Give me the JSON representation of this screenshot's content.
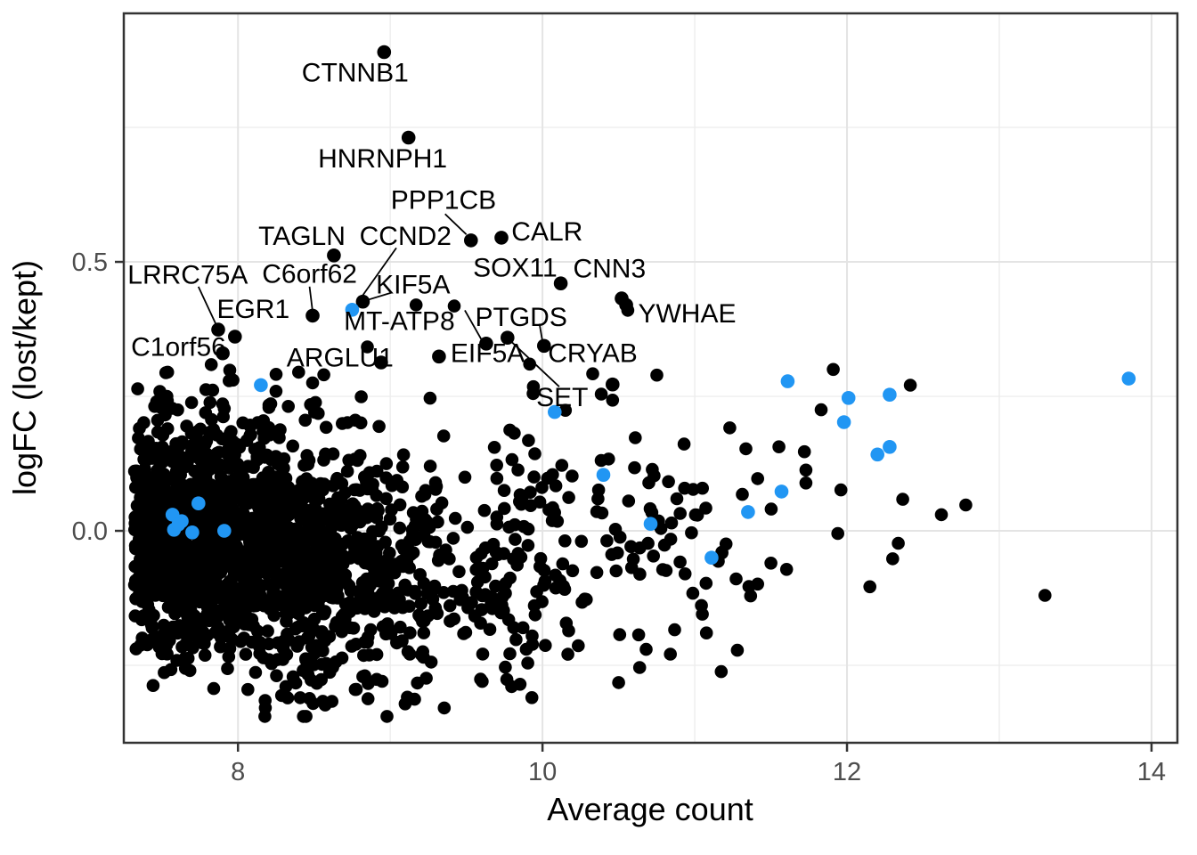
{
  "chart_data": {
    "type": "scatter",
    "title": "",
    "xlabel": "Average count",
    "ylabel": "logFC (lost/kept)",
    "xlim": [
      7.25,
      14.17
    ],
    "ylim": [
      -0.394,
      0.962
    ],
    "x_ticks": [
      {
        "v": 8,
        "label": "8"
      },
      {
        "v": 10,
        "label": "10"
      },
      {
        "v": 12,
        "label": "12"
      },
      {
        "v": 14,
        "label": "14"
      }
    ],
    "y_ticks": [
      {
        "v": 0.0,
        "label": "0.0"
      },
      {
        "v": 0.5,
        "label": "0.5"
      }
    ],
    "x_minor": [
      9,
      11,
      13
    ],
    "y_minor": [
      -0.25,
      0.25,
      0.75
    ],
    "grid": true,
    "legend": "none",
    "colors": {
      "point": "#000000",
      "highlight": "#2196F3",
      "grid_major": "#E4E4E4",
      "grid_minor": "#EDEDED",
      "panel_border": "#333333",
      "axis_text": "#4D4D4D",
      "axis_title": "#000000",
      "label_text": "#000000"
    },
    "labeled_points": [
      {
        "gene": "CTNNB1",
        "x": 8.96,
        "y": 0.89,
        "lx": 8.77,
        "ly": 0.852,
        "line": false,
        "blue": false
      },
      {
        "gene": "HNRNPH1",
        "x": 9.12,
        "y": 0.731,
        "lx": 8.95,
        "ly": 0.692,
        "line": false,
        "blue": false
      },
      {
        "gene": "PPP1CB",
        "x": 9.53,
        "y": 0.54,
        "lx": 9.35,
        "ly": 0.615,
        "line": true,
        "blue": false,
        "seg": [
          9.36,
          0.589,
          9.5,
          0.551
        ]
      },
      {
        "gene": "CALR",
        "x": 9.73,
        "y": 0.545,
        "lx": 10.03,
        "ly": 0.556,
        "line": false,
        "blue": false
      },
      {
        "gene": "TAGLN",
        "x": 8.63,
        "y": 0.512,
        "lx": 8.42,
        "ly": 0.548,
        "line": false,
        "blue": false
      },
      {
        "gene": "CCND2",
        "x": 8.75,
        "y": 0.411,
        "lx": 9.1,
        "ly": 0.548,
        "line": true,
        "blue": true,
        "seg": [
          9.04,
          0.526,
          8.78,
          0.422
        ]
      },
      {
        "gene": "SOX11",
        "x": 10.12,
        "y": 0.46,
        "lx": 9.82,
        "ly": 0.489,
        "line": false,
        "blue": false
      },
      {
        "gene": "CNN3",
        "x": 10.52,
        "y": 0.432,
        "lx": 10.44,
        "ly": 0.488,
        "line": false,
        "blue": false
      },
      {
        "gene": "LRRC75A",
        "x": 7.87,
        "y": 0.374,
        "lx": 7.67,
        "ly": 0.476,
        "line": true,
        "blue": false,
        "seg": [
          7.74,
          0.454,
          7.86,
          0.381
        ]
      },
      {
        "gene": "C6orf62",
        "x": 8.49,
        "y": 0.4,
        "lx": 8.47,
        "ly": 0.478,
        "line": true,
        "blue": false,
        "seg": [
          8.47,
          0.454,
          8.49,
          0.408
        ]
      },
      {
        "gene": "KIF5A",
        "x": 8.82,
        "y": 0.426,
        "lx": 9.15,
        "ly": 0.458,
        "line": true,
        "blue": false,
        "seg": [
          9.01,
          0.443,
          8.86,
          0.43
        ]
      },
      {
        "gene": "EGR1",
        "x": 7.98,
        "y": 0.361,
        "lx": 8.1,
        "ly": 0.412,
        "line": false,
        "blue": false
      },
      {
        "gene": "MT-ATP8",
        "x": 9.63,
        "y": 0.348,
        "lx": 9.06,
        "ly": 0.39,
        "line": true,
        "blue": false,
        "seg": [
          9.49,
          0.41,
          9.6,
          0.355
        ]
      },
      {
        "gene": "PTGDS",
        "x": 10.01,
        "y": 0.344,
        "lx": 9.86,
        "ly": 0.397,
        "line": true,
        "blue": false,
        "seg": [
          9.98,
          0.385,
          10.0,
          0.352
        ]
      },
      {
        "gene": "C1orf56",
        "x": 7.9,
        "y": 0.33,
        "lx": 7.61,
        "ly": 0.342,
        "line": false,
        "blue": false
      },
      {
        "gene": "ARGLU1",
        "x": 8.94,
        "y": 0.313,
        "lx": 8.67,
        "ly": 0.322,
        "line": false,
        "blue": false
      },
      {
        "gene": "EIF5A",
        "x": 9.32,
        "y": 0.324,
        "lx": 9.64,
        "ly": 0.33,
        "line": false,
        "blue": false
      },
      {
        "gene": "CRYAB",
        "x": 10.46,
        "y": 0.272,
        "lx": 10.33,
        "ly": 0.33,
        "line": false,
        "blue": false
      },
      {
        "gene": "SET",
        "x": 9.77,
        "y": 0.359,
        "lx": 10.13,
        "ly": 0.248,
        "line": true,
        "blue": false,
        "seg": [
          9.79,
          0.353,
          10.11,
          0.268
        ]
      },
      {
        "gene": "YWHAE",
        "x": 10.55,
        "y": 0.42,
        "lx": 10.95,
        "ly": 0.404,
        "line": false,
        "blue": false
      }
    ],
    "highlight_points": [
      [
        7.57,
        0.03
      ],
      [
        7.63,
        0.018
      ],
      [
        7.58,
        0.002
      ],
      [
        7.7,
        -0.003
      ],
      [
        7.74,
        0.051
      ],
      [
        7.91,
        0.0
      ],
      [
        7.61,
        0.012
      ],
      [
        8.15,
        0.271
      ],
      [
        10.08,
        0.221
      ],
      [
        10.4,
        0.104
      ],
      [
        10.71,
        0.013
      ],
      [
        11.11,
        -0.05
      ],
      [
        11.35,
        0.035
      ],
      [
        11.57,
        0.073
      ],
      [
        11.61,
        0.278
      ],
      [
        11.98,
        0.202
      ],
      [
        12.01,
        0.247
      ],
      [
        12.2,
        0.142
      ],
      [
        12.28,
        0.156
      ],
      [
        12.28,
        0.253
      ],
      [
        13.85,
        0.283
      ]
    ],
    "extra_points": [
      [
        9.17,
        0.42
      ],
      [
        9.42,
        0.418
      ],
      [
        10.56,
        0.41
      ],
      [
        10.46,
        0.243
      ],
      [
        9.94,
        0.268
      ],
      [
        10.33,
        0.292
      ],
      [
        10.15,
        0.224
      ],
      [
        8.85,
        0.342
      ],
      [
        8.25,
        0.291
      ],
      [
        8.49,
        0.275
      ],
      [
        11.91,
        0.3
      ],
      [
        11.83,
        0.225
      ],
      [
        11.72,
        0.147
      ],
      [
        11.73,
        0.113
      ],
      [
        11.73,
        0.089
      ],
      [
        11.96,
        0.076
      ],
      [
        12.62,
        0.03
      ],
      [
        12.78,
        0.048
      ],
      [
        13.3,
        -0.12
      ],
      [
        12.3,
        -0.052
      ],
      [
        12.15,
        -0.104
      ],
      [
        11.28,
        -0.222
      ],
      [
        10.5,
        -0.282
      ],
      [
        9.93,
        -0.31
      ],
      [
        9.16,
        -0.313
      ],
      [
        8.43,
        -0.345
      ],
      [
        11.05,
        -0.155
      ],
      [
        11.5,
        -0.06
      ],
      [
        8.82,
        -0.271
      ]
    ],
    "background_cloud": {
      "seed": 1337,
      "clusters": [
        {
          "n": 1450,
          "x0": 7.32,
          "xspread": 0.82,
          "xmin": 7.3,
          "xmax": 10.9,
          "ymean": -0.025,
          "ysd": 0.1,
          "ymin": -0.295,
          "ymax": 0.295
        },
        {
          "n": 320,
          "x0": 8.1,
          "xspread": 1.05,
          "xmin": 7.6,
          "xmax": 11.7,
          "ymean": -0.135,
          "ysd": 0.095,
          "ymin": -0.345,
          "ymax": 0.1
        },
        {
          "n": 130,
          "x0": 9.7,
          "xspread": 1.1,
          "xmin": 9.3,
          "xmax": 13.2,
          "ymean": 0.015,
          "ysd": 0.115,
          "ymin": -0.27,
          "ymax": 0.31
        },
        {
          "n": 70,
          "x0": 7.45,
          "xspread": 0.85,
          "xmin": 7.35,
          "xmax": 9.8,
          "ymean": 0.13,
          "ysd": 0.085,
          "ymin": 0.1,
          "ymax": 0.33,
          "halfup": true
        }
      ]
    }
  }
}
